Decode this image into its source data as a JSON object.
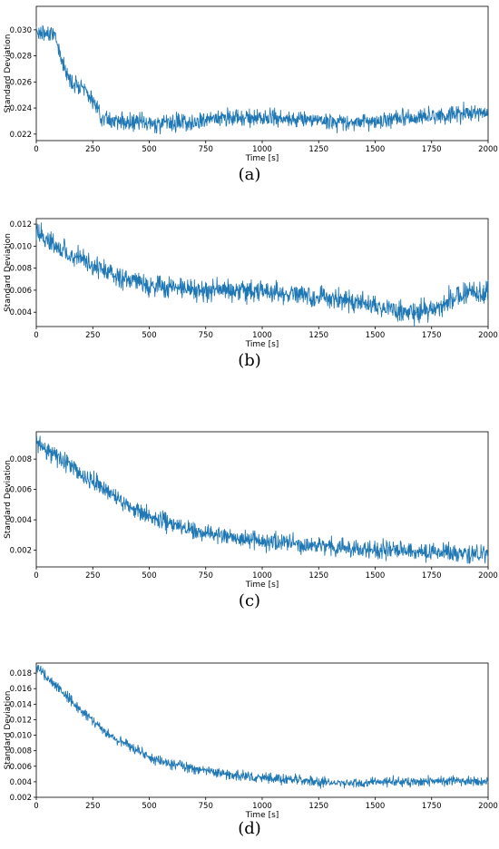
{
  "chart_data": [
    {
      "panel_label": "(a)",
      "type": "line",
      "xlabel": "Time [s]",
      "ylabel": "Standard Deviation",
      "xlim": [
        0,
        2000
      ],
      "ylim": [
        0.0215,
        0.0318
      ],
      "xticks": [
        0,
        250,
        500,
        750,
        1000,
        1250,
        1500,
        1750,
        2000
      ],
      "yticks": [
        0.022,
        0.024,
        0.026,
        0.028,
        0.03
      ],
      "ytick_labels": [
        "0.022",
        "0.024",
        "0.026",
        "0.028",
        "0.030"
      ],
      "grid": false,
      "line_color": "#1f77b4",
      "trend": [
        [
          0,
          0.03
        ],
        [
          40,
          0.0296
        ],
        [
          70,
          0.03
        ],
        [
          100,
          0.0285
        ],
        [
          130,
          0.0268
        ],
        [
          170,
          0.0257
        ],
        [
          200,
          0.0259
        ],
        [
          230,
          0.025
        ],
        [
          260,
          0.0242
        ],
        [
          300,
          0.0232
        ],
        [
          400,
          0.0229
        ],
        [
          500,
          0.0228
        ],
        [
          600,
          0.0229
        ],
        [
          700,
          0.023
        ],
        [
          800,
          0.0232
        ],
        [
          900,
          0.0233
        ],
        [
          1000,
          0.0232
        ],
        [
          1100,
          0.0231
        ],
        [
          1200,
          0.0232
        ],
        [
          1300,
          0.023
        ],
        [
          1400,
          0.0229
        ],
        [
          1500,
          0.023
        ],
        [
          1600,
          0.0232
        ],
        [
          1700,
          0.0233
        ],
        [
          1800,
          0.0234
        ],
        [
          1900,
          0.0236
        ],
        [
          2000,
          0.0236
        ]
      ],
      "noise_amplitude": 0.0004
    },
    {
      "panel_label": "(b)",
      "type": "line",
      "xlabel": "Time [s]",
      "ylabel": "Standard Deviation",
      "xlim": [
        0,
        2000
      ],
      "ylim": [
        0.0027,
        0.0125
      ],
      "xticks": [
        0,
        250,
        500,
        750,
        1000,
        1250,
        1500,
        1750,
        2000
      ],
      "yticks": [
        0.004,
        0.006,
        0.008,
        0.01,
        0.012
      ],
      "ytick_labels": [
        "0.004",
        "0.006",
        "0.008",
        "0.010",
        "0.012"
      ],
      "grid": false,
      "line_color": "#1f77b4",
      "trend": [
        [
          0,
          0.0112
        ],
        [
          50,
          0.0106
        ],
        [
          100,
          0.0098
        ],
        [
          200,
          0.0088
        ],
        [
          300,
          0.0078
        ],
        [
          400,
          0.007
        ],
        [
          500,
          0.0064
        ],
        [
          600,
          0.0061
        ],
        [
          700,
          0.006
        ],
        [
          800,
          0.006
        ],
        [
          900,
          0.006
        ],
        [
          1000,
          0.0059
        ],
        [
          1100,
          0.0057
        ],
        [
          1200,
          0.0055
        ],
        [
          1300,
          0.0052
        ],
        [
          1400,
          0.005
        ],
        [
          1500,
          0.0046
        ],
        [
          1600,
          0.004
        ],
        [
          1700,
          0.004
        ],
        [
          1750,
          0.0042
        ],
        [
          1800,
          0.0048
        ],
        [
          1850,
          0.0055
        ],
        [
          1900,
          0.0056
        ],
        [
          2000,
          0.0059
        ]
      ],
      "noise_amplitude": 0.0006
    },
    {
      "panel_label": "(c)",
      "type": "line",
      "xlabel": "Time [s]",
      "ylabel": "Standard Deviation",
      "xlim": [
        0,
        2000
      ],
      "ylim": [
        0.0009,
        0.0098
      ],
      "xticks": [
        0,
        250,
        500,
        750,
        1000,
        1250,
        1500,
        1750,
        2000
      ],
      "yticks": [
        0.002,
        0.004,
        0.006,
        0.008
      ],
      "ytick_labels": [
        "0.002",
        "0.004",
        "0.006",
        "0.008"
      ],
      "grid": false,
      "line_color": "#1f77b4",
      "trend": [
        [
          0,
          0.0091
        ],
        [
          100,
          0.0081
        ],
        [
          200,
          0.0071
        ],
        [
          300,
          0.006
        ],
        [
          400,
          0.005
        ],
        [
          500,
          0.0042
        ],
        [
          600,
          0.0037
        ],
        [
          700,
          0.0033
        ],
        [
          800,
          0.003
        ],
        [
          900,
          0.0028
        ],
        [
          1000,
          0.0026
        ],
        [
          1100,
          0.0025
        ],
        [
          1200,
          0.0023
        ],
        [
          1300,
          0.0022
        ],
        [
          1400,
          0.0021
        ],
        [
          1500,
          0.002
        ],
        [
          1600,
          0.002
        ],
        [
          1700,
          0.0019
        ],
        [
          1800,
          0.0019
        ],
        [
          1900,
          0.0018
        ],
        [
          2000,
          0.0018
        ]
      ],
      "noise_amplitude": 0.00035
    },
    {
      "panel_label": "(d)",
      "type": "line",
      "xlabel": "Time [s]",
      "ylabel": "Standard Deviation",
      "xlim": [
        0,
        2000
      ],
      "ylim": [
        0.002,
        0.0193
      ],
      "xticks": [
        0,
        250,
        500,
        750,
        1000,
        1250,
        1500,
        1750,
        2000
      ],
      "yticks": [
        0.002,
        0.004,
        0.006,
        0.008,
        0.01,
        0.012,
        0.014,
        0.016,
        0.018
      ],
      "ytick_labels": [
        "0.002",
        "0.004",
        "0.006",
        "0.008",
        "0.010",
        "0.012",
        "0.014",
        "0.016",
        "0.018"
      ],
      "grid": false,
      "line_color": "#1f77b4",
      "trend": [
        [
          0,
          0.0188
        ],
        [
          100,
          0.016
        ],
        [
          200,
          0.0132
        ],
        [
          300,
          0.0105
        ],
        [
          400,
          0.0088
        ],
        [
          500,
          0.0072
        ],
        [
          600,
          0.0063
        ],
        [
          700,
          0.0057
        ],
        [
          800,
          0.0052
        ],
        [
          900,
          0.0048
        ],
        [
          1000,
          0.0045
        ],
        [
          1100,
          0.0043
        ],
        [
          1200,
          0.0041
        ],
        [
          1300,
          0.0039
        ],
        [
          1400,
          0.0038
        ],
        [
          1500,
          0.0039
        ],
        [
          1600,
          0.004
        ],
        [
          1700,
          0.004
        ],
        [
          1800,
          0.0041
        ],
        [
          1900,
          0.0041
        ],
        [
          2000,
          0.004
        ]
      ],
      "noise_amplitude": 0.0004
    }
  ]
}
